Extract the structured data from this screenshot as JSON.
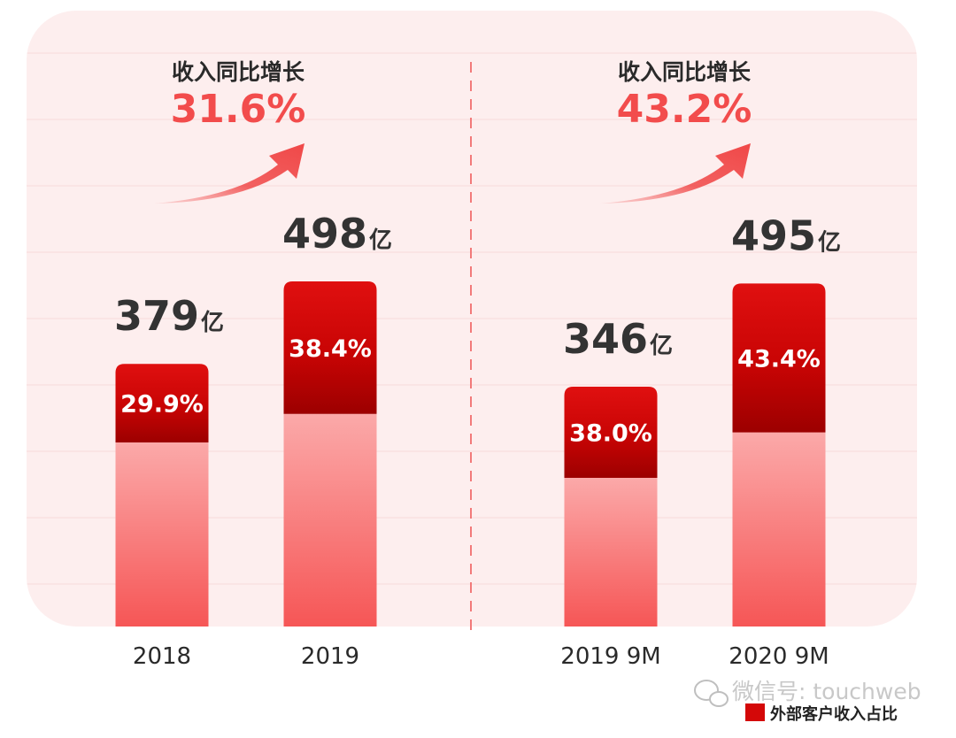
{
  "chart_data": {
    "type": "bar",
    "unit": "亿",
    "groups": [
      {
        "growth_label": "收入同比增长",
        "growth_value": "31.6%",
        "categories": [
          "2018",
          "2019"
        ],
        "totals": [
          379,
          498
        ],
        "total_labels": [
          "379",
          "498"
        ],
        "external_share_labels": [
          "29.9%",
          "38.4%"
        ],
        "external_share": [
          0.299,
          0.384
        ]
      },
      {
        "growth_label": "收入同比增长",
        "growth_value": "43.2%",
        "categories": [
          "2019 9M",
          "2020 9M"
        ],
        "totals": [
          346,
          495
        ],
        "total_labels": [
          "346",
          "495"
        ],
        "external_share_labels": [
          "38.0%",
          "43.4%"
        ],
        "external_share": [
          0.38,
          0.434
        ]
      }
    ],
    "legend": "外部客户收入占比",
    "watermark": "微信号: touchweb",
    "colors": {
      "panel_bg": "#fdeeee",
      "bar_dark_top": "#e01010",
      "bar_dark_bottom": "#9c0000",
      "bar_light_top": "#fba9a9",
      "bar_light_bottom": "#f65656",
      "growth_text": "#f24c4c",
      "arrow": "#f04848",
      "divider": "#f27a7a",
      "label_text": "#333333",
      "legend_swatch": "#d40808"
    }
  }
}
